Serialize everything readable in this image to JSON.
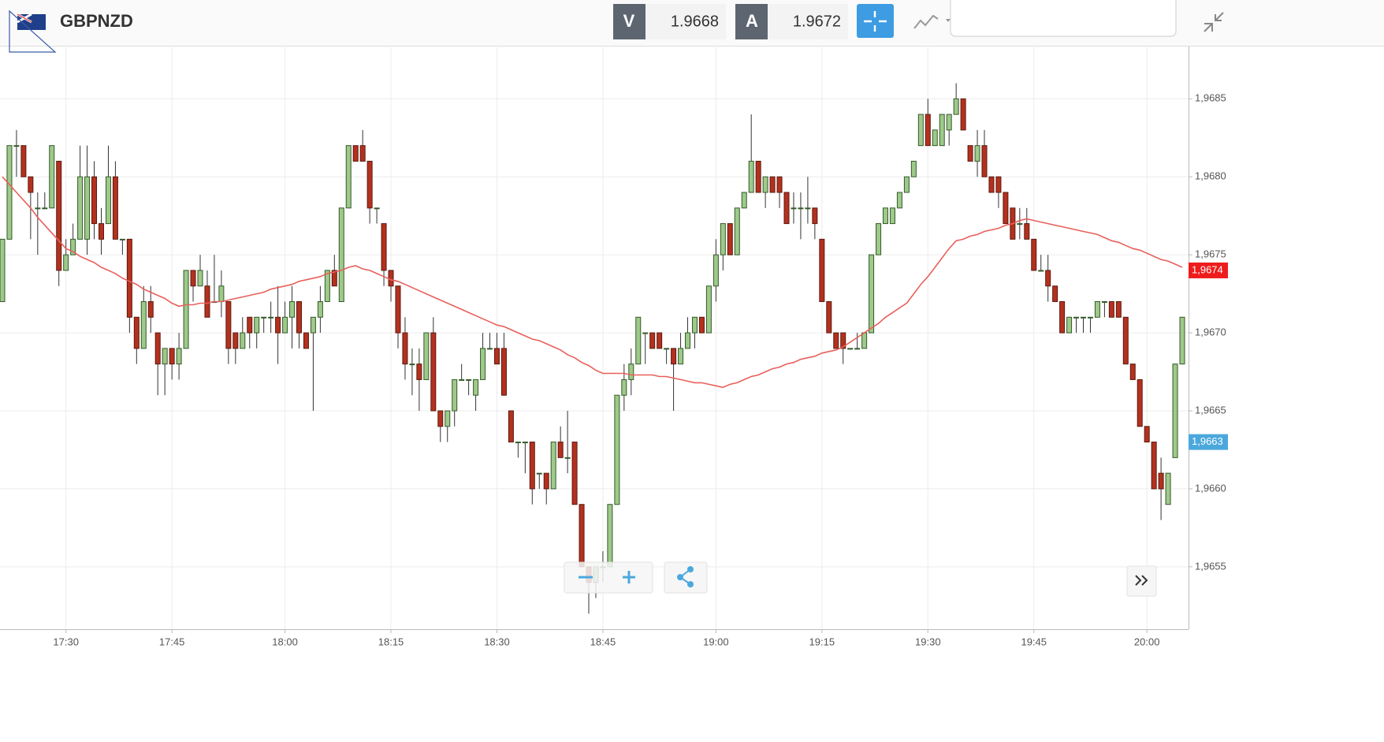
{
  "header": {
    "symbol": "GBPNZD",
    "sell_label": "V",
    "sell_price": "1.9668",
    "buy_label": "A",
    "buy_price": "1.9672"
  },
  "chart_data": {
    "type": "candlestick",
    "categories": [
      null,
      null,
      null,
      null,
      null,
      null,
      null,
      null,
      null,
      "17:30",
      null,
      null,
      null,
      null,
      null,
      null,
      null,
      null,
      null,
      null,
      null,
      null,
      null,
      null,
      "17:45",
      null,
      null,
      null,
      null,
      null,
      null,
      null,
      null,
      null,
      null,
      null,
      null,
      null,
      null,
      null,
      "18:00",
      null,
      null,
      null,
      null,
      null,
      null,
      null,
      null,
      null,
      null,
      null,
      null,
      null,
      null,
      "18:15",
      null,
      null,
      null,
      null,
      null,
      null,
      null,
      null,
      null,
      null,
      null,
      null,
      null,
      null,
      "18:30",
      null,
      null,
      null,
      null,
      null,
      null,
      null,
      null,
      null,
      null,
      null,
      null,
      null,
      null,
      "18:45",
      null,
      null,
      null,
      null,
      null,
      null,
      null,
      null,
      null,
      null,
      null,
      null,
      null,
      null,
      null,
      "19:00",
      null,
      null,
      null,
      null,
      null,
      null,
      null,
      null,
      null,
      null,
      null,
      null,
      null,
      null,
      "19:15",
      null,
      null,
      null,
      null,
      null,
      null,
      null,
      null,
      null,
      null,
      null,
      null,
      null,
      null,
      "19:30",
      null,
      null,
      null,
      null,
      null,
      null,
      null,
      null,
      null,
      null,
      null,
      null,
      null,
      null,
      "19:45",
      null,
      null,
      null,
      null,
      null,
      null,
      null,
      null,
      null,
      null,
      null,
      null,
      null,
      null,
      null,
      "20:00",
      null,
      null,
      null,
      null,
      null
    ],
    "open": [
      1.9672,
      1.9676,
      1.9682,
      1.9682,
      1.968,
      1.9678,
      1.9678,
      1.9678,
      1.9681,
      1.9674,
      1.9675,
      1.9676,
      1.9676,
      1.968,
      1.9677,
      1.9677,
      1.968,
      1.9676,
      1.9676,
      1.9671,
      1.9669,
      1.9672,
      1.967,
      1.9668,
      1.9669,
      1.9668,
      1.9669,
      1.9674,
      1.9673,
      1.9673,
      1.9672,
      1.9672,
      1.9672,
      1.967,
      1.9669,
      1.9671,
      1.967,
      1.9671,
      1.9671,
      1.9671,
      1.967,
      1.9671,
      1.9672,
      1.967,
      1.967,
      1.9671,
      1.9672,
      1.9674,
      1.9672,
      1.9678,
      1.9682,
      1.9682,
      1.9681,
      1.9678,
      1.9677,
      1.9674,
      1.9673,
      1.967,
      1.9668,
      1.9668,
      1.9667,
      1.967,
      1.9665,
      1.9664,
      1.9665,
      1.9667,
      1.9667,
      1.9666,
      1.9667,
      1.9669,
      1.9669,
      1.9669,
      1.9665,
      1.9663,
      1.9663,
      1.9663,
      1.9661,
      1.9661,
      1.966,
      1.9663,
      1.9662,
      1.9663,
      1.9659,
      1.9655,
      1.9654,
      1.9655,
      1.9655,
      1.9659,
      1.9666,
      1.9667,
      1.9668,
      1.967,
      1.967,
      1.967,
      1.9669,
      1.9669,
      1.9668,
      1.9669,
      1.967,
      1.9671,
      1.967,
      1.9673,
      1.9675,
      1.9677,
      1.9675,
      1.9678,
      1.9679,
      1.9681,
      1.9679,
      1.968,
      1.968,
      1.9679,
      1.9678,
      1.9678,
      1.9678,
      1.9678,
      1.9676,
      1.9672,
      1.967,
      1.967,
      1.9669,
      1.9669,
      1.9669,
      1.967,
      1.9675,
      1.9677,
      1.9677,
      1.9678,
      1.9679,
      1.968,
      1.9682,
      1.9684,
      1.9682,
      1.9682,
      1.9683,
      1.9684,
      1.9685,
      1.9682,
      1.9681,
      1.9682,
      1.968,
      1.968,
      1.9679,
      1.9678,
      1.9677,
      1.9677,
      1.9676,
      1.9674,
      1.9674,
      1.9673,
      1.9672,
      1.967,
      1.9671,
      1.9671,
      1.9671,
      1.9671,
      1.9672,
      1.9672,
      1.9672,
      1.9671,
      1.9668,
      1.9667,
      1.9664,
      1.9663,
      1.9661,
      1.9659,
      1.9662,
      1.9668
    ],
    "high": [
      1.9676,
      1.9682,
      1.9683,
      1.9682,
      1.968,
      1.9679,
      1.9679,
      1.9682,
      1.9681,
      1.9676,
      1.9677,
      1.9682,
      1.9682,
      1.9681,
      1.9678,
      1.9682,
      1.9681,
      1.9676,
      1.9676,
      1.9671,
      1.9673,
      1.9673,
      1.967,
      1.9669,
      1.9669,
      1.967,
      1.9674,
      1.9674,
      1.9675,
      1.9674,
      1.9675,
      1.9674,
      1.9672,
      1.967,
      1.9671,
      1.9671,
      1.9671,
      1.9671,
      1.9672,
      1.9673,
      1.9672,
      1.9673,
      1.9672,
      1.967,
      1.9671,
      1.9673,
      1.9674,
      1.9675,
      1.9678,
      1.9682,
      1.9682,
      1.9683,
      1.9681,
      1.9678,
      1.9677,
      1.9674,
      1.9673,
      1.9671,
      1.9669,
      1.9669,
      1.967,
      1.9671,
      1.9665,
      1.9665,
      1.9667,
      1.9668,
      1.9667,
      1.9667,
      1.967,
      1.967,
      1.967,
      1.967,
      1.9665,
      1.9663,
      1.9663,
      1.9663,
      1.9661,
      1.9661,
      1.9663,
      1.9664,
      1.9665,
      1.9663,
      1.9659,
      1.9655,
      1.9655,
      1.9656,
      1.9659,
      1.9666,
      1.9668,
      1.9669,
      1.9671,
      1.967,
      1.967,
      1.967,
      1.9669,
      1.9669,
      1.967,
      1.9671,
      1.9671,
      1.9671,
      1.9673,
      1.9676,
      1.9677,
      1.9677,
      1.9678,
      1.9679,
      1.9684,
      1.9681,
      1.968,
      1.968,
      1.968,
      1.9679,
      1.9679,
      1.9679,
      1.968,
      1.9678,
      1.9676,
      1.9672,
      1.967,
      1.967,
      1.9669,
      1.967,
      1.967,
      1.9675,
      1.9677,
      1.9678,
      1.9678,
      1.9679,
      1.968,
      1.9681,
      1.9684,
      1.9685,
      1.9683,
      1.9684,
      1.9684,
      1.9686,
      1.9685,
      1.9682,
      1.9683,
      1.9683,
      1.968,
      1.968,
      1.9679,
      1.9678,
      1.9678,
      1.9678,
      1.9676,
      1.9675,
      1.9675,
      1.9673,
      1.9672,
      1.9671,
      1.9671,
      1.9671,
      1.9671,
      1.9672,
      1.9672,
      1.9672,
      1.9672,
      1.9671,
      1.9668,
      1.9667,
      1.9664,
      1.9663,
      1.9662,
      1.9661,
      1.9668,
      1.9671
    ],
    "low": [
      1.9672,
      1.9676,
      1.968,
      1.968,
      1.9676,
      1.9675,
      1.9678,
      1.9678,
      1.9673,
      1.9674,
      1.9675,
      1.9676,
      1.9675,
      1.9676,
      1.9675,
      1.9677,
      1.9676,
      1.9675,
      1.967,
      1.9668,
      1.9669,
      1.967,
      1.9666,
      1.9666,
      1.9667,
      1.9667,
      1.9669,
      1.9672,
      1.9673,
      1.9671,
      1.9672,
      1.9671,
      1.9668,
      1.9668,
      1.9669,
      1.9669,
      1.9669,
      1.967,
      1.967,
      1.9668,
      1.967,
      1.9669,
      1.9669,
      1.9669,
      1.9665,
      1.967,
      1.9672,
      1.9673,
      1.9672,
      1.9678,
      1.9681,
      1.9681,
      1.9677,
      1.9677,
      1.9673,
      1.9672,
      1.9669,
      1.9667,
      1.9666,
      1.9665,
      1.9667,
      1.9665,
      1.9663,
      1.9663,
      1.9664,
      1.9667,
      1.9666,
      1.9665,
      1.9667,
      1.9669,
      1.9668,
      1.9666,
      1.9663,
      1.9662,
      1.9661,
      1.9659,
      1.966,
      1.9659,
      1.966,
      1.9662,
      1.9661,
      1.9659,
      1.9655,
      1.9652,
      1.9653,
      1.9654,
      1.9655,
      1.9659,
      1.9665,
      1.9666,
      1.9668,
      1.9668,
      1.9669,
      1.9669,
      1.9668,
      1.9665,
      1.9668,
      1.9669,
      1.9669,
      1.967,
      1.967,
      1.9672,
      1.9674,
      1.9675,
      1.9675,
      1.9678,
      1.9679,
      1.9679,
      1.9678,
      1.9679,
      1.9678,
      1.9677,
      1.9677,
      1.9676,
      1.9677,
      1.9676,
      1.9672,
      1.967,
      1.9669,
      1.9668,
      1.9669,
      1.9669,
      1.9669,
      1.967,
      1.9675,
      1.9677,
      1.9677,
      1.9678,
      1.9679,
      1.968,
      1.9682,
      1.9682,
      1.9682,
      1.9682,
      1.9682,
      1.9684,
      1.9683,
      1.9681,
      1.968,
      1.968,
      1.9679,
      1.9678,
      1.9677,
      1.9676,
      1.9676,
      1.9676,
      1.9674,
      1.9674,
      1.9672,
      1.9672,
      1.967,
      1.967,
      1.967,
      1.967,
      1.967,
      1.9671,
      1.9671,
      1.9671,
      1.9671,
      1.9668,
      1.9667,
      1.9664,
      1.9663,
      1.966,
      1.9658,
      1.9659,
      1.9662,
      1.9668
    ],
    "close": [
      1.9676,
      1.9682,
      1.9682,
      1.968,
      1.9679,
      1.9678,
      1.9678,
      1.9682,
      1.9674,
      1.9675,
      1.9676,
      1.968,
      1.968,
      1.9677,
      1.9676,
      1.968,
      1.9676,
      1.9676,
      1.9671,
      1.9669,
      1.9672,
      1.9671,
      1.9668,
      1.9669,
      1.9668,
      1.9669,
      1.9674,
      1.9673,
      1.9674,
      1.9671,
      1.9672,
      1.9673,
      1.9669,
      1.9669,
      1.967,
      1.967,
      1.9671,
      1.9671,
      1.9671,
      1.967,
      1.9671,
      1.9672,
      1.967,
      1.9669,
      1.9671,
      1.9672,
      1.9674,
      1.9673,
      1.9678,
      1.9682,
      1.9681,
      1.9681,
      1.9678,
      1.9678,
      1.9674,
      1.9673,
      1.967,
      1.9668,
      1.9668,
      1.9667,
      1.967,
      1.9665,
      1.9664,
      1.9665,
      1.9667,
      1.9667,
      1.9667,
      1.9667,
      1.9669,
      1.9669,
      1.9668,
      1.9666,
      1.9663,
      1.9663,
      1.9663,
      1.966,
      1.9661,
      1.966,
      1.9663,
      1.9662,
      1.9662,
      1.9659,
      1.9655,
      1.9654,
      1.9655,
      1.9655,
      1.9659,
      1.9666,
      1.9667,
      1.9668,
      1.9671,
      1.967,
      1.9669,
      1.9669,
      1.9669,
      1.9668,
      1.9669,
      1.967,
      1.9671,
      1.967,
      1.9673,
      1.9675,
      1.9677,
      1.9675,
      1.9678,
      1.9679,
      1.9681,
      1.9679,
      1.968,
      1.9679,
      1.9679,
      1.9677,
      1.9678,
      1.9678,
      1.9678,
      1.9677,
      1.9672,
      1.967,
      1.9669,
      1.9669,
      1.9669,
      1.9669,
      1.967,
      1.9675,
      1.9677,
      1.9678,
      1.9678,
      1.9679,
      1.968,
      1.9681,
      1.9684,
      1.9682,
      1.9683,
      1.9684,
      1.9684,
      1.9685,
      1.9683,
      1.9681,
      1.9682,
      1.968,
      1.9679,
      1.9679,
      1.9677,
      1.9676,
      1.9677,
      1.9676,
      1.9674,
      1.9674,
      1.9673,
      1.9672,
      1.967,
      1.9671,
      1.9671,
      1.9671,
      1.9671,
      1.9672,
      1.9672,
      1.9671,
      1.9671,
      1.9668,
      1.9667,
      1.9664,
      1.9663,
      1.966,
      1.966,
      1.9661,
      1.9668,
      1.9671
    ],
    "moving_average": [
      1.968,
      1.96795,
      1.9679,
      1.96785,
      1.9678,
      1.96774,
      1.96769,
      1.96764,
      1.96759,
      1.96754,
      1.96752,
      1.96749,
      1.96747,
      1.96745,
      1.96742,
      1.9674,
      1.96738,
      1.96735,
      1.96733,
      1.96731,
      1.96728,
      1.96726,
      1.96724,
      1.96722,
      1.96719,
      1.96717,
      1.96718,
      1.96718,
      1.96719,
      1.96719,
      1.9672,
      1.9672,
      1.96721,
      1.96722,
      1.96723,
      1.96724,
      1.96725,
      1.96726,
      1.96728,
      1.96729,
      1.9673,
      1.96731,
      1.96733,
      1.96734,
      1.96735,
      1.96736,
      1.96738,
      1.96739,
      1.9674,
      1.96742,
      1.96743,
      1.96741,
      1.9674,
      1.96738,
      1.96736,
      1.96734,
      1.96733,
      1.96731,
      1.96729,
      1.96727,
      1.96725,
      1.96723,
      1.96721,
      1.96719,
      1.96717,
      1.96715,
      1.96713,
      1.96711,
      1.96709,
      1.96707,
      1.96705,
      1.96704,
      1.96702,
      1.967,
      1.96698,
      1.96696,
      1.96695,
      1.96693,
      1.96691,
      1.96689,
      1.96686,
      1.96684,
      1.96681,
      1.96679,
      1.96676,
      1.96674,
      1.96674,
      1.96674,
      1.96674,
      1.96673,
      1.96673,
      1.96673,
      1.96673,
      1.96672,
      1.96672,
      1.96671,
      1.9667,
      1.96669,
      1.96668,
      1.96668,
      1.96667,
      1.96666,
      1.96665,
      1.96667,
      1.96668,
      1.9667,
      1.96672,
      1.96673,
      1.96675,
      1.96677,
      1.96678,
      1.9668,
      1.96681,
      1.96683,
      1.96684,
      1.96685,
      1.96687,
      1.96688,
      1.96689,
      1.96691,
      1.96694,
      1.96697,
      1.967,
      1.96703,
      1.96706,
      1.9671,
      1.96713,
      1.96716,
      1.96719,
      1.96725,
      1.96731,
      1.96736,
      1.96742,
      1.96748,
      1.96754,
      1.96759,
      1.9676,
      1.96762,
      1.96763,
      1.96765,
      1.96766,
      1.96767,
      1.96769,
      1.9677,
      1.96772,
      1.96773,
      1.96772,
      1.96771,
      1.9677,
      1.96769,
      1.96768,
      1.96767,
      1.96766,
      1.96765,
      1.96764,
      1.96763,
      1.96761,
      1.96759,
      1.96758,
      1.96756,
      1.96754,
      1.96753,
      1.96751,
      1.96749,
      1.96747,
      1.96746,
      1.96744,
      1.96742
    ],
    "up_color": "#9ec98a",
    "down_color": "#b3311e",
    "ma_color": "#e8605c",
    "ylim": [
      1.9651,
      1.96883
    ],
    "yticks": [
      {
        "value": 1.9655,
        "label": "1,9655"
      },
      {
        "value": 1.966,
        "label": "1,9660"
      },
      {
        "value": 1.9665,
        "label": "1,9665"
      },
      {
        "value": 1.967,
        "label": "1,9670"
      },
      {
        "value": 1.9675,
        "label": "1,9675"
      },
      {
        "value": 1.968,
        "label": "1,9680"
      },
      {
        "value": 1.9685,
        "label": "1,9685"
      }
    ],
    "grid": true,
    "price_markers": [
      {
        "value": 1.9674,
        "label": "1,9674",
        "color": "#ee1c1c"
      },
      {
        "value": 1.9663,
        "label": "1,9663",
        "color": "#4ba8dd"
      }
    ]
  }
}
